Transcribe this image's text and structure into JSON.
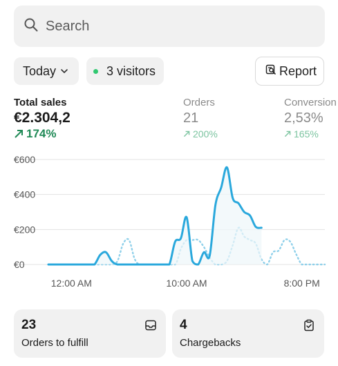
{
  "search": {
    "placeholder": "Search"
  },
  "filters": {
    "date_label": "Today",
    "visitors_label": "3 visitors",
    "visitors_dot_color": "#31c871",
    "report_label": "Report"
  },
  "metrics": {
    "sales": {
      "label": "Total sales",
      "value": "€2.304,2",
      "delta": "174%"
    },
    "orders": {
      "label": "Orders",
      "value": "21",
      "delta": "200%"
    },
    "conversion": {
      "label": "Conversion",
      "value": "2,53%",
      "delta": "165%"
    }
  },
  "chart_data": {
    "type": "line",
    "y_ticks": [
      "€600",
      "€400",
      "€200",
      "€0"
    ],
    "y_tick_values": [
      600,
      400,
      200,
      0
    ],
    "x_ticks": [
      "12:00 AM",
      "10:00 AM",
      "8:00 PM"
    ],
    "x_tick_values": [
      2,
      12,
      22
    ],
    "ylim": [
      0,
      600
    ],
    "xlim": [
      0,
      24
    ],
    "grid": true,
    "series": [
      {
        "style": "solid",
        "color": "#2aa8dc",
        "x": [
          0,
          1,
          2,
          3,
          3.5,
          4,
          4.5,
          5,
          5.5,
          6,
          7,
          8,
          9,
          10,
          10.5,
          11,
          11.5,
          12,
          12.5,
          13,
          13.5,
          14,
          14.5,
          15,
          15.5,
          16,
          16.5,
          17,
          17.5,
          18,
          18.5,
          19,
          19.5
        ],
        "values": [
          0,
          0,
          0,
          0,
          0,
          0,
          55,
          70,
          20,
          0,
          0,
          0,
          0,
          0,
          0,
          130,
          150,
          270,
          20,
          0,
          70,
          50,
          340,
          440,
          555,
          380,
          350,
          300,
          280,
          215,
          210,
          null,
          null
        ]
      },
      {
        "style": "dotted",
        "color": "#8fd0ea",
        "x": [
          0,
          1,
          2,
          3,
          4,
          5,
          5.5,
          6,
          6.5,
          7,
          7.5,
          8,
          9,
          10,
          11,
          11.5,
          12,
          12.5,
          13,
          13.5,
          14,
          14.5,
          15,
          15.5,
          16,
          16.5,
          17,
          17.5,
          18,
          18.5,
          19,
          19.5,
          20,
          20.5,
          21,
          21.5,
          22,
          22.5,
          23,
          24
        ],
        "values": [
          0,
          0,
          0,
          0,
          0,
          0,
          0,
          20,
          120,
          140,
          30,
          0,
          0,
          0,
          0,
          90,
          140,
          140,
          140,
          100,
          40,
          0,
          0,
          20,
          110,
          210,
          160,
          140,
          120,
          30,
          0,
          70,
          80,
          140,
          130,
          60,
          0,
          0,
          0,
          0
        ]
      }
    ]
  },
  "cards": [
    {
      "count": "23",
      "caption": "Orders to fulfill",
      "icon": "inbox-icon"
    },
    {
      "count": "4",
      "caption": "Chargebacks",
      "icon": "clipboard-check-icon"
    }
  ]
}
